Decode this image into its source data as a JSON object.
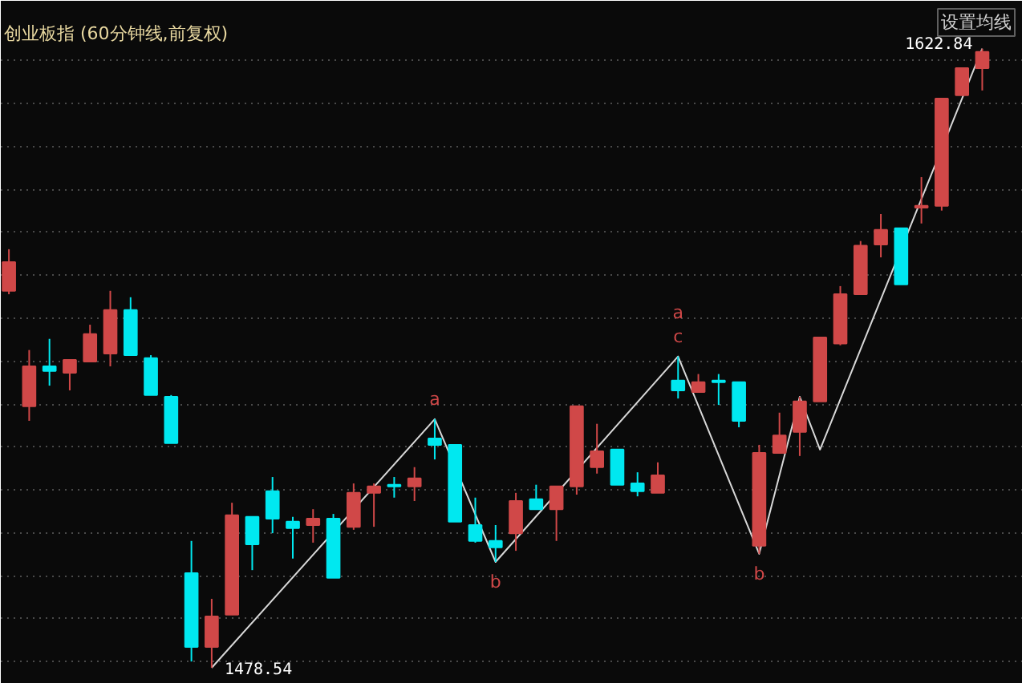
{
  "chart_data": {
    "type": "candlestick",
    "title": "创业板指 (60分钟线,前复权)",
    "categories": [
      null,
      null,
      null,
      null,
      null,
      null,
      null,
      null,
      null,
      null,
      null,
      null,
      null,
      null,
      null,
      null,
      null,
      null,
      null,
      null,
      null,
      null,
      null,
      null,
      null,
      null,
      null,
      null,
      null,
      null,
      null,
      null,
      null,
      null,
      null,
      null,
      null,
      null,
      null,
      null,
      null,
      null,
      null,
      null,
      null,
      null,
      null,
      null,
      null
    ],
    "ohlc": [
      [
        1566.4,
        1576.1,
        1565.6,
        1573.1
      ],
      [
        1539.5,
        1552.6,
        1536.1,
        1548.8
      ],
      [
        1548.8,
        1555.2,
        1544.3,
        1547.7
      ],
      [
        1547.3,
        1550.3,
        1543.2,
        1550.3
      ],
      [
        1549.9,
        1558.5,
        1549.9,
        1556.3
      ],
      [
        1551.8,
        1566.4,
        1548.8,
        1561.9
      ],
      [
        1561.9,
        1564.9,
        1551.4,
        1551.4
      ],
      [
        1550.7,
        1551.4,
        1542.1,
        1542.1
      ],
      [
        1541.7,
        1542.1,
        1530.9,
        1530.9
      ],
      [
        1500.6,
        1508.1,
        1480.0,
        1483.4
      ],
      [
        1483.4,
        1494.6,
        1478.54,
        1490.5
      ],
      [
        1490.9,
        1517.0,
        1490.9,
        1514.1
      ],
      [
        1513.7,
        1513.7,
        1501.3,
        1507.3
      ],
      [
        1519.7,
        1523.0,
        1509.9,
        1513.3
      ],
      [
        1512.6,
        1513.7,
        1504.0,
        1511.1
      ],
      [
        1511.8,
        1515.5,
        1507.7,
        1513.3
      ],
      [
        1513.3,
        1514.4,
        1499.5,
        1499.5
      ],
      [
        1511.4,
        1521.5,
        1510.7,
        1519.3
      ],
      [
        1519.3,
        1521.5,
        1511.4,
        1520.8
      ],
      [
        1521.2,
        1523.0,
        1518.2,
        1520.8
      ],
      [
        1520.8,
        1525.3,
        1517.4,
        1522.7
      ],
      [
        1532.0,
        1536.5,
        1527.1,
        1530.5
      ],
      [
        1530.5,
        1530.5,
        1512.6,
        1512.6
      ],
      [
        1511.8,
        1518.2,
        1507.7,
        1508.1
      ],
      [
        1508.1,
        1511.8,
        1503.2,
        1506.6
      ],
      [
        1509.9,
        1519.3,
        1505.8,
        1517.4
      ],
      [
        1517.8,
        1521.2,
        1515.5,
        1515.5
      ],
      [
        1515.5,
        1520.8,
        1508.1,
        1520.8
      ],
      [
        1520.8,
        1539.5,
        1518.9,
        1539.5
      ],
      [
        1525.3,
        1535.4,
        1523.8,
        1529.0
      ],
      [
        1529.4,
        1529.4,
        1521.2,
        1521.2
      ],
      [
        1521.5,
        1524.1,
        1518.5,
        1519.7
      ],
      [
        1519.3,
        1526.4,
        1519.3,
        1523.4
      ],
      [
        1545.5,
        1551.1,
        1541.3,
        1543.2
      ],
      [
        1542.8,
        1547.0,
        1542.8,
        1545.1
      ],
      [
        1545.5,
        1547.0,
        1539.8,
        1545.1
      ],
      [
        1545.1,
        1545.1,
        1534.6,
        1536.1
      ],
      [
        1507.0,
        1530.5,
        1505.1,
        1528.6
      ],
      [
        1528.6,
        1538.0,
        1528.6,
        1532.7
      ],
      [
        1533.5,
        1541.7,
        1527.9,
        1540.6
      ],
      [
        1540.6,
        1555.5,
        1540.6,
        1555.5
      ],
      [
        1554.1,
        1567.5,
        1553.7,
        1565.6
      ],
      [
        1565.6,
        1578.0,
        1565.6,
        1576.9
      ],
      [
        1577.2,
        1584.3,
        1574.2,
        1580.6
      ],
      [
        1581.0,
        1581.0,
        1567.9,
        1567.9
      ],
      [
        1585.8,
        1592.9,
        1582.1,
        1586.2
      ],
      [
        1586.2,
        1611.2,
        1585.1,
        1611.2
      ],
      [
        1612.0,
        1618.3,
        1612.0,
        1618.3
      ],
      [
        1618.3,
        1622.84,
        1613.1,
        1622.1
      ]
    ],
    "series": [
      {
        "type": "line",
        "color": "#d8d8d8",
        "values": [
          null,
          null,
          null,
          null,
          null,
          null,
          null,
          null,
          null,
          null,
          1478.54,
          null,
          null,
          null,
          null,
          null,
          null,
          null,
          null,
          null,
          null,
          1536.5,
          null,
          null,
          1503.2,
          null,
          null,
          null,
          null,
          null,
          null,
          null,
          null,
          1551.1,
          null,
          null,
          null,
          1505.1,
          null,
          1541.7,
          1529.4,
          null,
          null,
          null,
          null,
          null,
          null,
          null,
          1622.84
        ]
      }
    ],
    "ylim": [
      1474.8,
      1634
    ],
    "yticks": [
      {
        "value": 1480,
        "label": null
      },
      {
        "value": 1490,
        "label": null
      },
      {
        "value": 1500,
        "label": null
      },
      {
        "value": 1510,
        "label": null
      },
      {
        "value": 1520,
        "label": null
      },
      {
        "value": 1530,
        "label": null
      },
      {
        "value": 1540,
        "label": null
      },
      {
        "value": 1550,
        "label": null
      },
      {
        "value": 1560,
        "label": null
      },
      {
        "value": 1570,
        "label": null
      },
      {
        "value": 1580,
        "label": null
      },
      {
        "value": 1590,
        "label": null
      },
      {
        "value": 1600,
        "label": null
      },
      {
        "value": 1610,
        "label": null
      },
      {
        "value": 1620,
        "label": null
      }
    ],
    "grid": "y",
    "tick_labels": false,
    "annotations": [
      "1478.54",
      "1622.84",
      {
        "text": "a",
        "y": 1536.5
      },
      {
        "text": "b",
        "y": 1503.2
      },
      {
        "text": "c",
        "y": 1551.1
      },
      {
        "text": "a",
        "y": 1551.1
      },
      {
        "text": "b",
        "y": 1505.1
      },
      "设置均线"
    ]
  }
}
